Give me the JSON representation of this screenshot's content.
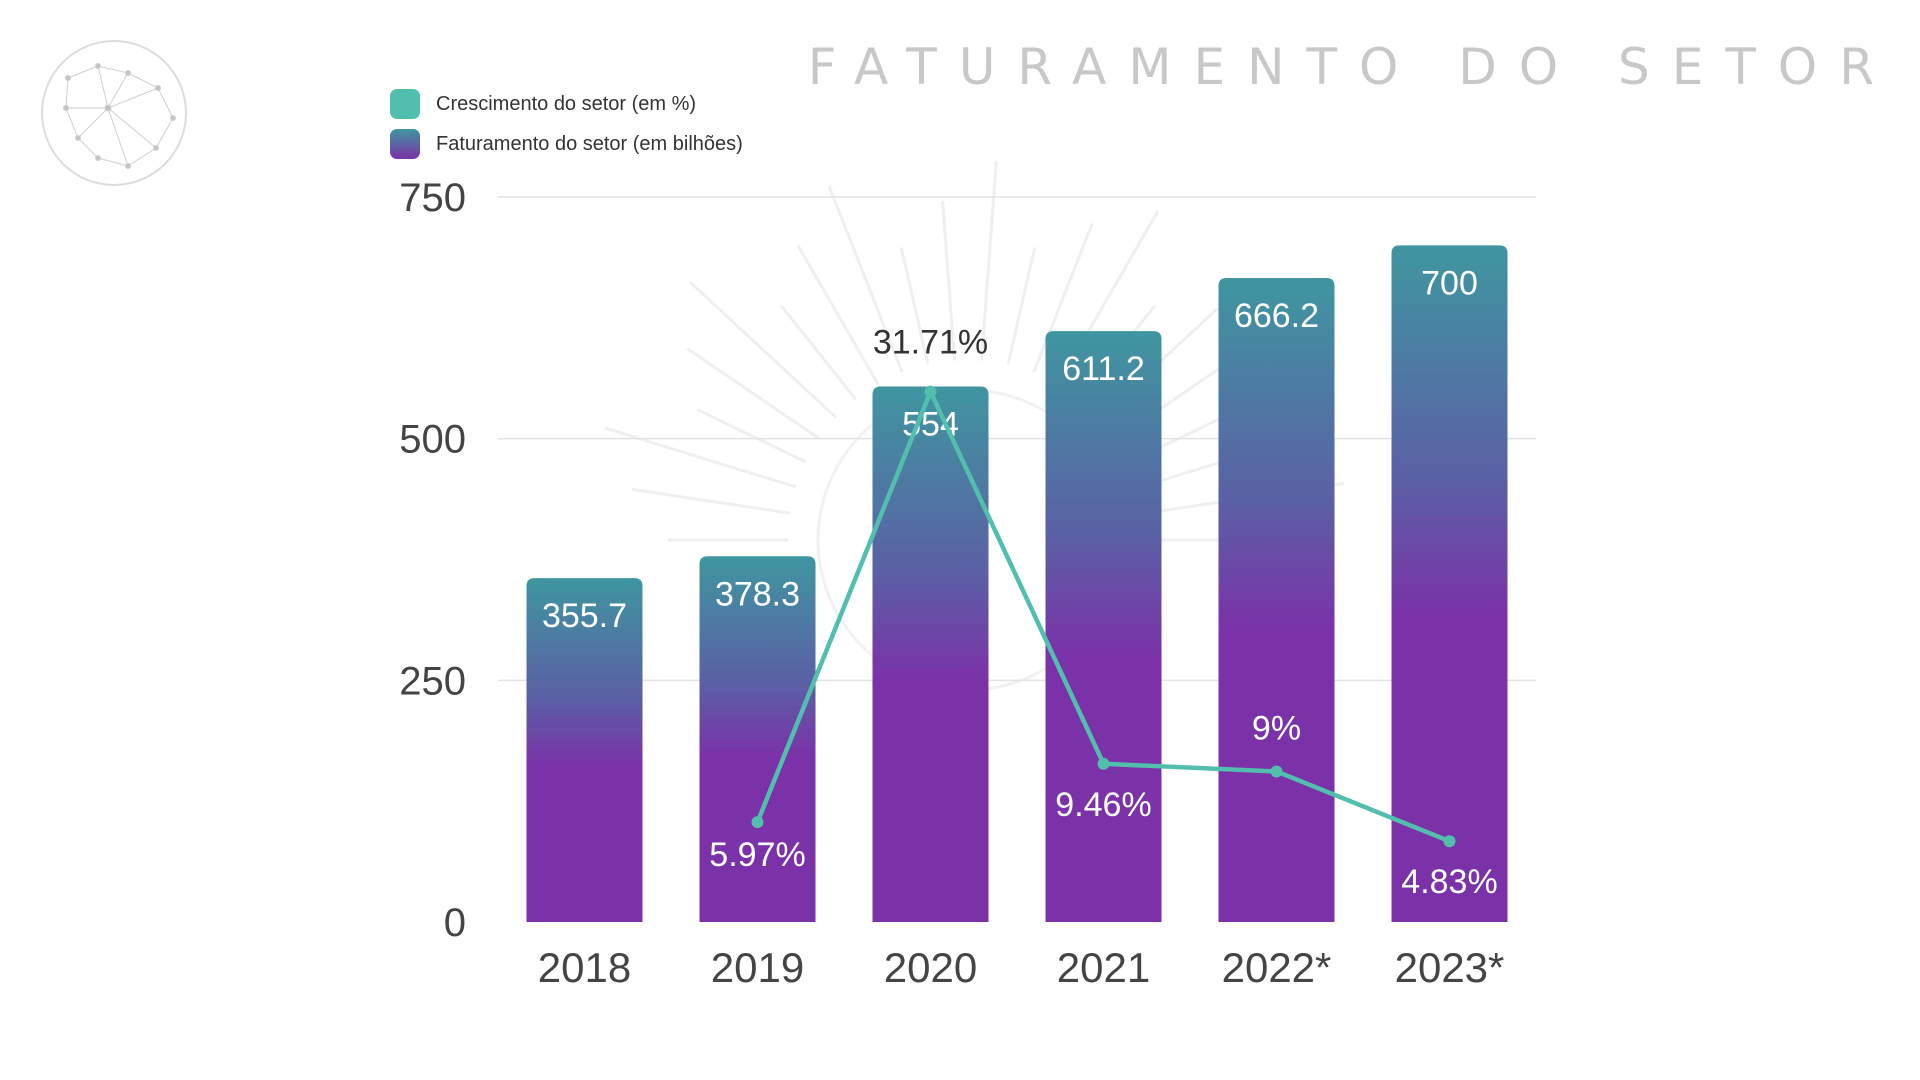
{
  "title": "FATURAMENTO DO SETOR",
  "legend": {
    "growth": "Crescimento do setor (em %)",
    "revenue": "Faturamento do setor (em bilhões)"
  },
  "colors": {
    "bar_top": "#3f96a0",
    "bar_mid": "#5b5fa5",
    "bar_bottom": "#7b31a8",
    "line": "#52bfae",
    "growth_swatch": "#52bfae",
    "gridline": "#e2e2e2",
    "axis_text": "#444444",
    "label_light": "#ffffff",
    "label_dark": "#333333"
  },
  "icons": {
    "logo": "globe-network-icon"
  },
  "chart_data": {
    "type": "bar",
    "categories": [
      "2018",
      "2019",
      "2020",
      "2021",
      "2022*",
      "2023*"
    ],
    "ylim": [
      0,
      750
    ],
    "yticks": [
      "0",
      "250",
      "500",
      "750"
    ],
    "grid": true,
    "legend_position": "top-left",
    "series": [
      {
        "name": "Faturamento do setor (em bilhões)",
        "type": "bar",
        "values": [
          355.7,
          378.3,
          554,
          611.2,
          666.2,
          700
        ],
        "labels": [
          "355.7",
          "378.3",
          "554",
          "611.2",
          "666.2",
          "700"
        ]
      },
      {
        "name": "Crescimento do setor (em %)",
        "type": "line",
        "values": [
          null,
          5.97,
          31.71,
          9.46,
          9,
          4.83
        ],
        "labels": [
          "",
          "5.97%",
          "31.71%",
          "9.46%",
          "9%",
          "4.83%"
        ]
      }
    ]
  }
}
